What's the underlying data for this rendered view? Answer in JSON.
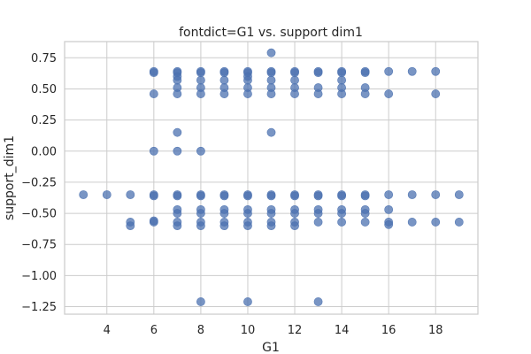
{
  "chart_data": {
    "type": "scatter",
    "title": "fontdict=G1 vs. support dim1",
    "xlabel": "G1",
    "ylabel": "support_dim1",
    "xlim": [
      2.2,
      19.8
    ],
    "ylim": [
      -1.31,
      0.88
    ],
    "xticks": [
      4,
      6,
      8,
      10,
      12,
      14,
      16,
      18
    ],
    "yticks": [
      0.75,
      0.5,
      0.25,
      0.0,
      -0.25,
      -0.5,
      -0.75,
      -1.0,
      -1.25
    ],
    "ytick_labels": [
      "0.75",
      "0.50",
      "0.25",
      "0.00",
      "−0.25",
      "−0.50",
      "−0.75",
      "−1.00",
      "−1.25"
    ],
    "grid": true,
    "marker_color": "#4c72b0",
    "series": [
      {
        "points": [
          [
            3,
            -0.35
          ],
          [
            4,
            -0.35
          ],
          [
            5,
            -0.35
          ],
          [
            5,
            -0.57
          ],
          [
            5,
            -0.6
          ],
          [
            6,
            0.64
          ],
          [
            6,
            0.63
          ],
          [
            6,
            0.46
          ],
          [
            6,
            0.0
          ],
          [
            6,
            -0.35
          ],
          [
            6,
            -0.36
          ],
          [
            6,
            -0.57
          ],
          [
            6,
            -0.56
          ],
          [
            7,
            0.64
          ],
          [
            7,
            0.63
          ],
          [
            7,
            0.6
          ],
          [
            7,
            0.57
          ],
          [
            7,
            0.51
          ],
          [
            7,
            0.46
          ],
          [
            7,
            0.15
          ],
          [
            7,
            0.0
          ],
          [
            7,
            -0.35
          ],
          [
            7,
            -0.36
          ],
          [
            7,
            -0.47
          ],
          [
            7,
            -0.5
          ],
          [
            7,
            -0.57
          ],
          [
            7,
            -0.6
          ],
          [
            8,
            0.64
          ],
          [
            8,
            0.63
          ],
          [
            8,
            0.57
          ],
          [
            8,
            0.51
          ],
          [
            8,
            0.46
          ],
          [
            8,
            0.0
          ],
          [
            8,
            -0.35
          ],
          [
            8,
            -0.36
          ],
          [
            8,
            -0.47
          ],
          [
            8,
            -0.5
          ],
          [
            8,
            -0.57
          ],
          [
            8,
            -0.6
          ],
          [
            8,
            -1.21
          ],
          [
            9,
            0.64
          ],
          [
            9,
            0.63
          ],
          [
            9,
            0.57
          ],
          [
            9,
            0.51
          ],
          [
            9,
            0.46
          ],
          [
            9,
            -0.35
          ],
          [
            9,
            -0.36
          ],
          [
            9,
            -0.47
          ],
          [
            9,
            -0.5
          ],
          [
            9,
            -0.57
          ],
          [
            9,
            -0.6
          ],
          [
            10,
            0.64
          ],
          [
            10,
            0.63
          ],
          [
            10,
            0.6
          ],
          [
            10,
            0.57
          ],
          [
            10,
            0.51
          ],
          [
            10,
            0.46
          ],
          [
            10,
            -0.35
          ],
          [
            10,
            -0.36
          ],
          [
            10,
            -0.47
          ],
          [
            10,
            -0.5
          ],
          [
            10,
            -0.57
          ],
          [
            10,
            -0.6
          ],
          [
            10,
            -1.21
          ],
          [
            11,
            0.79
          ],
          [
            11,
            0.64
          ],
          [
            11,
            0.63
          ],
          [
            11,
            0.57
          ],
          [
            11,
            0.51
          ],
          [
            11,
            0.46
          ],
          [
            11,
            0.15
          ],
          [
            11,
            -0.35
          ],
          [
            11,
            -0.36
          ],
          [
            11,
            -0.47
          ],
          [
            11,
            -0.5
          ],
          [
            11,
            -0.57
          ],
          [
            11,
            -0.6
          ],
          [
            12,
            0.64
          ],
          [
            12,
            0.63
          ],
          [
            12,
            0.57
          ],
          [
            12,
            0.51
          ],
          [
            12,
            0.46
          ],
          [
            12,
            -0.35
          ],
          [
            12,
            -0.36
          ],
          [
            12,
            -0.47
          ],
          [
            12,
            -0.5
          ],
          [
            12,
            -0.57
          ],
          [
            12,
            -0.6
          ],
          [
            13,
            0.64
          ],
          [
            13,
            0.63
          ],
          [
            13,
            0.51
          ],
          [
            13,
            0.46
          ],
          [
            13,
            -0.35
          ],
          [
            13,
            -0.36
          ],
          [
            13,
            -0.47
          ],
          [
            13,
            -0.5
          ],
          [
            13,
            -0.57
          ],
          [
            13,
            -1.21
          ],
          [
            14,
            0.64
          ],
          [
            14,
            0.63
          ],
          [
            14,
            0.57
          ],
          [
            14,
            0.51
          ],
          [
            14,
            0.46
          ],
          [
            14,
            -0.35
          ],
          [
            14,
            -0.36
          ],
          [
            14,
            -0.47
          ],
          [
            14,
            -0.5
          ],
          [
            14,
            -0.57
          ],
          [
            15,
            0.64
          ],
          [
            15,
            0.63
          ],
          [
            15,
            0.51
          ],
          [
            15,
            0.46
          ],
          [
            15,
            -0.35
          ],
          [
            15,
            -0.36
          ],
          [
            15,
            -0.47
          ],
          [
            15,
            -0.5
          ],
          [
            15,
            -0.57
          ],
          [
            16,
            0.64
          ],
          [
            16,
            0.46
          ],
          [
            16,
            -0.35
          ],
          [
            16,
            -0.47
          ],
          [
            16,
            -0.57
          ],
          [
            16,
            -0.59
          ],
          [
            17,
            0.64
          ],
          [
            17,
            -0.35
          ],
          [
            17,
            -0.57
          ],
          [
            18,
            0.64
          ],
          [
            18,
            0.46
          ],
          [
            18,
            -0.35
          ],
          [
            18,
            -0.57
          ],
          [
            19,
            -0.35
          ],
          [
            19,
            -0.57
          ]
        ]
      }
    ]
  }
}
